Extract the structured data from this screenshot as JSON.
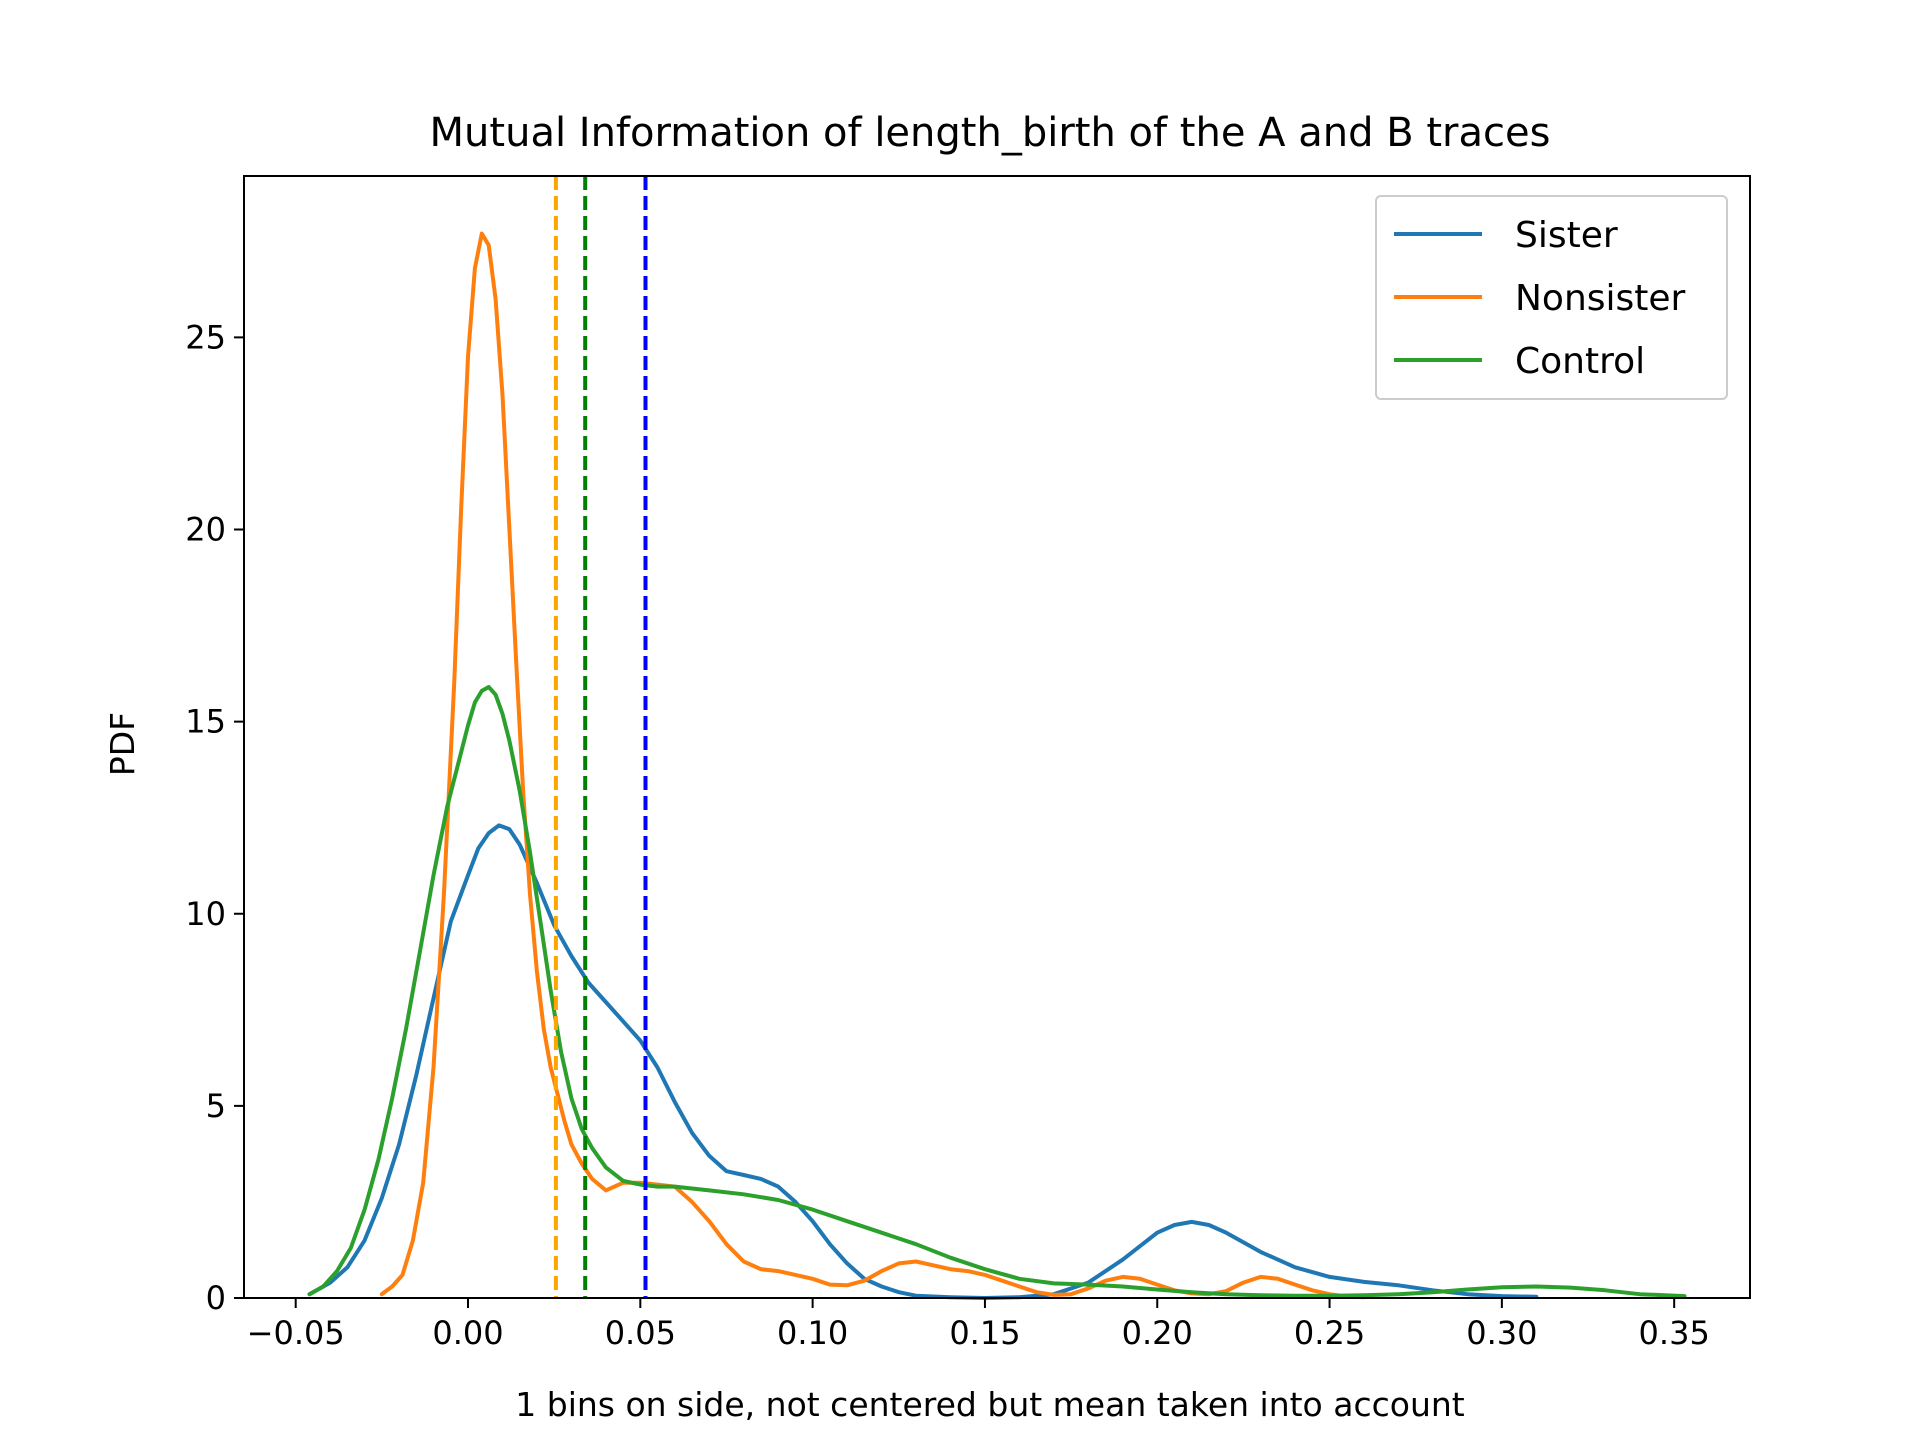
{
  "chart_data": {
    "type": "line",
    "title": "Mutual Information of length_birth of the A and B traces",
    "xlabel": "1 bins on side, not centered but mean taken into account",
    "ylabel": "PDF",
    "xlim": [
      -0.065,
      0.372
    ],
    "ylim": [
      0,
      29.2
    ],
    "xticks": [
      -0.05,
      0.0,
      0.05,
      0.1,
      0.15,
      0.2,
      0.25,
      0.3,
      0.35
    ],
    "xtick_labels": [
      "−0.05",
      "0.00",
      "0.05",
      "0.10",
      "0.15",
      "0.20",
      "0.25",
      "0.30",
      "0.35"
    ],
    "yticks": [
      0,
      5,
      10,
      15,
      20,
      25
    ],
    "ytick_labels": [
      "0",
      "5",
      "10",
      "15",
      "20",
      "25"
    ],
    "grid": false,
    "legend_position": "top-right",
    "series": [
      {
        "name": "Sister",
        "color": "#1f77b4",
        "x": [
          -0.046,
          -0.04,
          -0.035,
          -0.03,
          -0.025,
          -0.02,
          -0.015,
          -0.01,
          -0.005,
          0.0,
          0.003,
          0.006,
          0.009,
          0.012,
          0.015,
          0.02,
          0.025,
          0.03,
          0.035,
          0.04,
          0.045,
          0.05,
          0.055,
          0.06,
          0.065,
          0.07,
          0.075,
          0.08,
          0.085,
          0.09,
          0.095,
          0.1,
          0.105,
          0.11,
          0.115,
          0.12,
          0.125,
          0.13,
          0.14,
          0.15,
          0.16,
          0.17,
          0.18,
          0.19,
          0.2,
          0.205,
          0.21,
          0.215,
          0.22,
          0.23,
          0.24,
          0.25,
          0.26,
          0.27,
          0.28,
          0.29,
          0.3,
          0.31
        ],
        "y": [
          0.1,
          0.4,
          0.8,
          1.5,
          2.6,
          4.0,
          5.8,
          7.8,
          9.8,
          11.0,
          11.7,
          12.1,
          12.3,
          12.2,
          11.8,
          10.8,
          9.7,
          8.9,
          8.2,
          7.7,
          7.2,
          6.7,
          6.0,
          5.1,
          4.3,
          3.7,
          3.3,
          3.2,
          3.1,
          2.9,
          2.5,
          2.0,
          1.4,
          0.9,
          0.5,
          0.3,
          0.15,
          0.06,
          0.02,
          0.0,
          0.02,
          0.1,
          0.4,
          1.0,
          1.7,
          1.9,
          1.98,
          1.9,
          1.7,
          1.2,
          0.8,
          0.55,
          0.42,
          0.33,
          0.2,
          0.1,
          0.05,
          0.03
        ]
      },
      {
        "name": "Nonsister",
        "color": "#ff7f0e",
        "x": [
          -0.025,
          -0.022,
          -0.019,
          -0.016,
          -0.013,
          -0.01,
          -0.007,
          -0.004,
          -0.002,
          0.0,
          0.002,
          0.004,
          0.006,
          0.008,
          0.01,
          0.012,
          0.014,
          0.016,
          0.018,
          0.02,
          0.022,
          0.024,
          0.026,
          0.028,
          0.03,
          0.033,
          0.036,
          0.04,
          0.045,
          0.05,
          0.055,
          0.06,
          0.065,
          0.07,
          0.075,
          0.08,
          0.085,
          0.09,
          0.095,
          0.1,
          0.105,
          0.11,
          0.115,
          0.12,
          0.125,
          0.13,
          0.135,
          0.14,
          0.145,
          0.15,
          0.155,
          0.16,
          0.165,
          0.17,
          0.175,
          0.18,
          0.185,
          0.19,
          0.195,
          0.2,
          0.205,
          0.21,
          0.215,
          0.22,
          0.225,
          0.23,
          0.235,
          0.24,
          0.245,
          0.25,
          0.255,
          0.26
        ],
        "y": [
          0.1,
          0.3,
          0.6,
          1.5,
          3.0,
          6.0,
          10.5,
          16.0,
          20.5,
          24.5,
          26.8,
          27.7,
          27.4,
          26.0,
          23.5,
          20.0,
          16.5,
          13.2,
          10.5,
          8.5,
          7.0,
          6.0,
          5.3,
          4.6,
          4.0,
          3.5,
          3.1,
          2.8,
          3.0,
          3.0,
          2.95,
          2.9,
          2.5,
          2.0,
          1.4,
          0.95,
          0.75,
          0.7,
          0.6,
          0.5,
          0.35,
          0.33,
          0.45,
          0.7,
          0.9,
          0.95,
          0.85,
          0.75,
          0.7,
          0.6,
          0.45,
          0.3,
          0.15,
          0.08,
          0.1,
          0.25,
          0.45,
          0.55,
          0.5,
          0.35,
          0.2,
          0.12,
          0.1,
          0.18,
          0.4,
          0.55,
          0.5,
          0.35,
          0.2,
          0.1,
          0.04,
          0.02
        ]
      },
      {
        "name": "Control",
        "color": "#2ca02c",
        "x": [
          -0.046,
          -0.042,
          -0.038,
          -0.034,
          -0.03,
          -0.026,
          -0.022,
          -0.018,
          -0.014,
          -0.01,
          -0.006,
          -0.002,
          0.0,
          0.002,
          0.004,
          0.006,
          0.008,
          0.01,
          0.012,
          0.015,
          0.018,
          0.021,
          0.024,
          0.027,
          0.03,
          0.033,
          0.036,
          0.04,
          0.045,
          0.05,
          0.055,
          0.06,
          0.065,
          0.07,
          0.08,
          0.09,
          0.1,
          0.11,
          0.12,
          0.13,
          0.14,
          0.15,
          0.16,
          0.17,
          0.18,
          0.19,
          0.2,
          0.21,
          0.22,
          0.23,
          0.24,
          0.25,
          0.26,
          0.27,
          0.28,
          0.29,
          0.3,
          0.31,
          0.32,
          0.33,
          0.34,
          0.353
        ],
        "y": [
          0.1,
          0.3,
          0.7,
          1.3,
          2.3,
          3.6,
          5.2,
          7.0,
          9.0,
          11.0,
          12.8,
          14.2,
          14.9,
          15.5,
          15.8,
          15.9,
          15.7,
          15.2,
          14.5,
          13.2,
          11.6,
          9.8,
          8.0,
          6.4,
          5.2,
          4.4,
          3.9,
          3.4,
          3.05,
          2.95,
          2.9,
          2.9,
          2.85,
          2.8,
          2.7,
          2.55,
          2.3,
          2.0,
          1.7,
          1.4,
          1.05,
          0.75,
          0.5,
          0.38,
          0.35,
          0.3,
          0.22,
          0.15,
          0.1,
          0.07,
          0.06,
          0.06,
          0.07,
          0.1,
          0.15,
          0.22,
          0.28,
          0.3,
          0.27,
          0.2,
          0.1,
          0.05
        ]
      }
    ],
    "vlines": [
      {
        "x": 0.0255,
        "color": "#ffa500",
        "style": "dashed"
      },
      {
        "x": 0.034,
        "color": "#008000",
        "style": "dashed"
      },
      {
        "x": 0.0515,
        "color": "#0000ff",
        "style": "dashed"
      }
    ]
  }
}
